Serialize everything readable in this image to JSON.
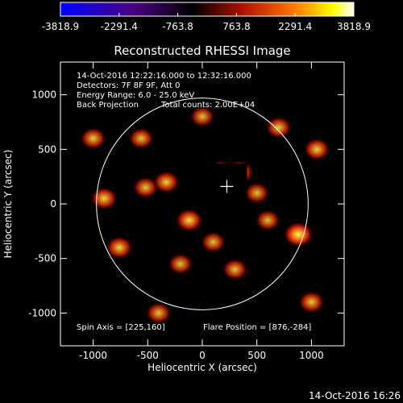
{
  "chart_data": {
    "type": "heatmap",
    "title": "Reconstructed RHESSI Image",
    "xlabel": "Heliocentric X (arcsec)",
    "ylabel": "Heliocentric Y (arcsec)",
    "xlim": [
      -1300,
      1300
    ],
    "ylim": [
      -1300,
      1300
    ],
    "x_ticks": [
      "-1000",
      "-500",
      "0",
      "500",
      "1000"
    ],
    "y_ticks": [
      "-1000",
      "-500",
      "0",
      "500",
      "1000"
    ],
    "x_tick_values": [
      -1000,
      -500,
      0,
      500,
      1000
    ],
    "y_tick_values": [
      -1000,
      -500,
      0,
      500,
      1000
    ],
    "colorbar": {
      "range": [
        -3818.9,
        3818.9
      ],
      "tick_labels": [
        "-3818.9",
        "-2291.4",
        "-763.8",
        "763.8",
        "2291.4",
        "3818.9"
      ],
      "tick_values": [
        -3818.9,
        -2291.4,
        -763.8,
        763.8,
        2291.4,
        3818.9
      ],
      "colors": [
        "#0000ff",
        "#4b0082",
        "#000000",
        "#b01000",
        "#ff7a00",
        "#ffff00",
        "#ffffff"
      ]
    },
    "annotations": [
      "14-Oct-2016 12:22:16.000 to 12:32:16.000",
      "Detectors: 7F 8F 9F, Att 0",
      "Energy Range: 6.0 - 25.0 keV",
      "Back Projection",
      "Total counts: 2.00E+04"
    ],
    "footer_left": "Spin Axis = [225,160]",
    "footer_right": "Flare Position = [876,-284]",
    "solar_disk_radius_arcsec": 970,
    "spin_axis": [
      225,
      160
    ],
    "flare_position": [
      876,
      -284
    ],
    "masked_square": {
      "x": [
        0,
        410
      ],
      "y": [
        -40,
        370
      ]
    },
    "sources": [
      {
        "x": 880,
        "y": -280,
        "intensity": 1.0
      },
      {
        "x": 340,
        "y": 290,
        "intensity": 0.85
      },
      {
        "x": 170,
        "y": 300,
        "intensity": 0.6
      },
      {
        "x": -120,
        "y": -150,
        "intensity": 0.75
      },
      {
        "x": -330,
        "y": 200,
        "intensity": 0.65
      },
      {
        "x": -520,
        "y": 150,
        "intensity": 0.55
      },
      {
        "x": -900,
        "y": 50,
        "intensity": 0.7
      },
      {
        "x": -760,
        "y": -400,
        "intensity": 0.7
      },
      {
        "x": -1000,
        "y": 600,
        "intensity": 0.6
      },
      {
        "x": -560,
        "y": 600,
        "intensity": 0.55
      },
      {
        "x": 0,
        "y": 800,
        "intensity": 0.5
      },
      {
        "x": 700,
        "y": 700,
        "intensity": 0.6
      },
      {
        "x": 1050,
        "y": 500,
        "intensity": 0.65
      },
      {
        "x": 1000,
        "y": -900,
        "intensity": 0.6
      },
      {
        "x": -400,
        "y": -1000,
        "intensity": 0.55
      },
      {
        "x": 300,
        "y": -600,
        "intensity": 0.55
      },
      {
        "x": 600,
        "y": -150,
        "intensity": 0.5
      },
      {
        "x": 500,
        "y": 100,
        "intensity": 0.5
      },
      {
        "x": -200,
        "y": -550,
        "intensity": 0.5
      },
      {
        "x": 100,
        "y": -350,
        "intensity": 0.5
      }
    ]
  },
  "timestamp": "14-Oct-2016 16:26"
}
